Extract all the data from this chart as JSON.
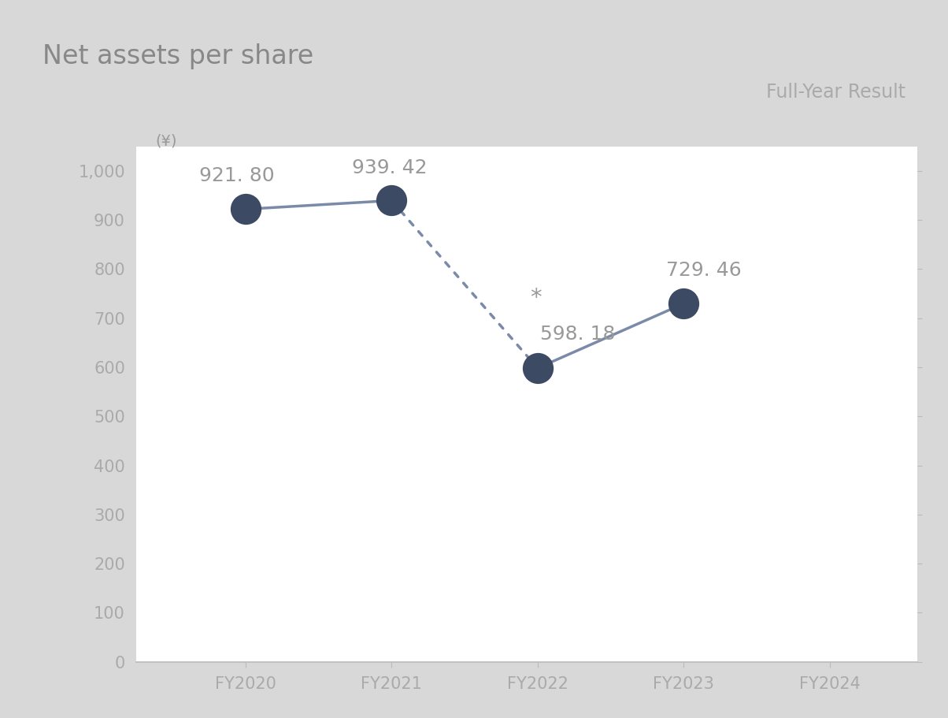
{
  "title": "Net assets per share",
  "subtitle": "Full-Year Result",
  "ylabel": "(¥)",
  "categories": [
    "FY2020",
    "FY2021",
    "FY2022",
    "FY2023",
    "FY2024"
  ],
  "x_positions": [
    0,
    1,
    2,
    3,
    4
  ],
  "values": [
    921.8,
    939.42,
    598.18,
    729.46,
    null
  ],
  "dot_color": "#3c4a63",
  "line_color": "#7a8aa8",
  "ylim": [
    0,
    1050
  ],
  "yticks": [
    0,
    100,
    200,
    300,
    400,
    500,
    600,
    700,
    800,
    900,
    1000
  ],
  "ytick_labels": [
    "0",
    "100",
    "200",
    "300",
    "400",
    "500",
    "600",
    "700",
    "800",
    "900",
    "1,000"
  ],
  "outer_background": "#d8d8d8",
  "inner_background": "#ffffff",
  "title_color": "#888888",
  "subtitle_color": "#aaaaaa",
  "label_color": "#999999",
  "axis_color": "#aaaaaa",
  "title_fontsize": 24,
  "subtitle_fontsize": 17,
  "label_fontsize": 18,
  "axis_fontsize": 15,
  "ylabel_fontsize": 14,
  "dot_size": 800,
  "line_width": 2.5
}
